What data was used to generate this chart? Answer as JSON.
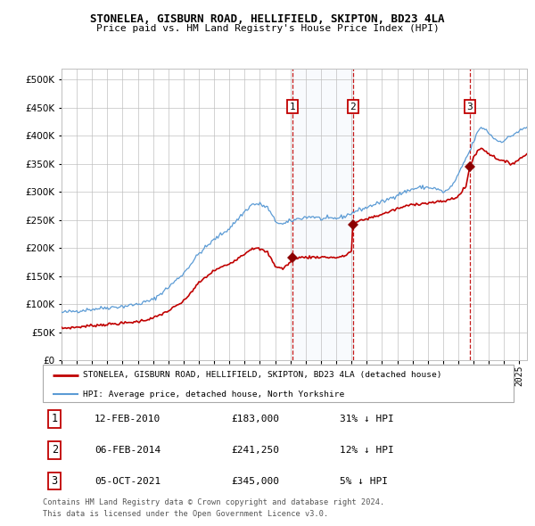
{
  "title": "STONELEA, GISBURN ROAD, HELLIFIELD, SKIPTON, BD23 4LA",
  "subtitle": "Price paid vs. HM Land Registry's House Price Index (HPI)",
  "legend_house": "STONELEA, GISBURN ROAD, HELLIFIELD, SKIPTON, BD23 4LA (detached house)",
  "legend_hpi": "HPI: Average price, detached house, North Yorkshire",
  "transactions": [
    {
      "num": 1,
      "date": "12-FEB-2010",
      "price": 183000,
      "hpi_pct": "31% ↓ HPI",
      "year": 2010.12
    },
    {
      "num": 2,
      "date": "06-FEB-2014",
      "price": 241250,
      "hpi_pct": "12% ↓ HPI",
      "year": 2014.09
    },
    {
      "num": 3,
      "date": "05-OCT-2021",
      "price": 345000,
      "hpi_pct": "5% ↓ HPI",
      "year": 2021.76
    }
  ],
  "footnote1": "Contains HM Land Registry data © Crown copyright and database right 2024.",
  "footnote2": "This data is licensed under the Open Government Licence v3.0.",
  "hpi_color": "#5b9bd5",
  "house_color": "#c00000",
  "marker_color": "#8b0000",
  "shade_color": "#dce9f5",
  "grid_color": "#c0c0c0",
  "ylim": [
    0,
    520000
  ],
  "xlim_start": 1995.0,
  "xlim_end": 2025.5,
  "background_color": "#ffffff"
}
